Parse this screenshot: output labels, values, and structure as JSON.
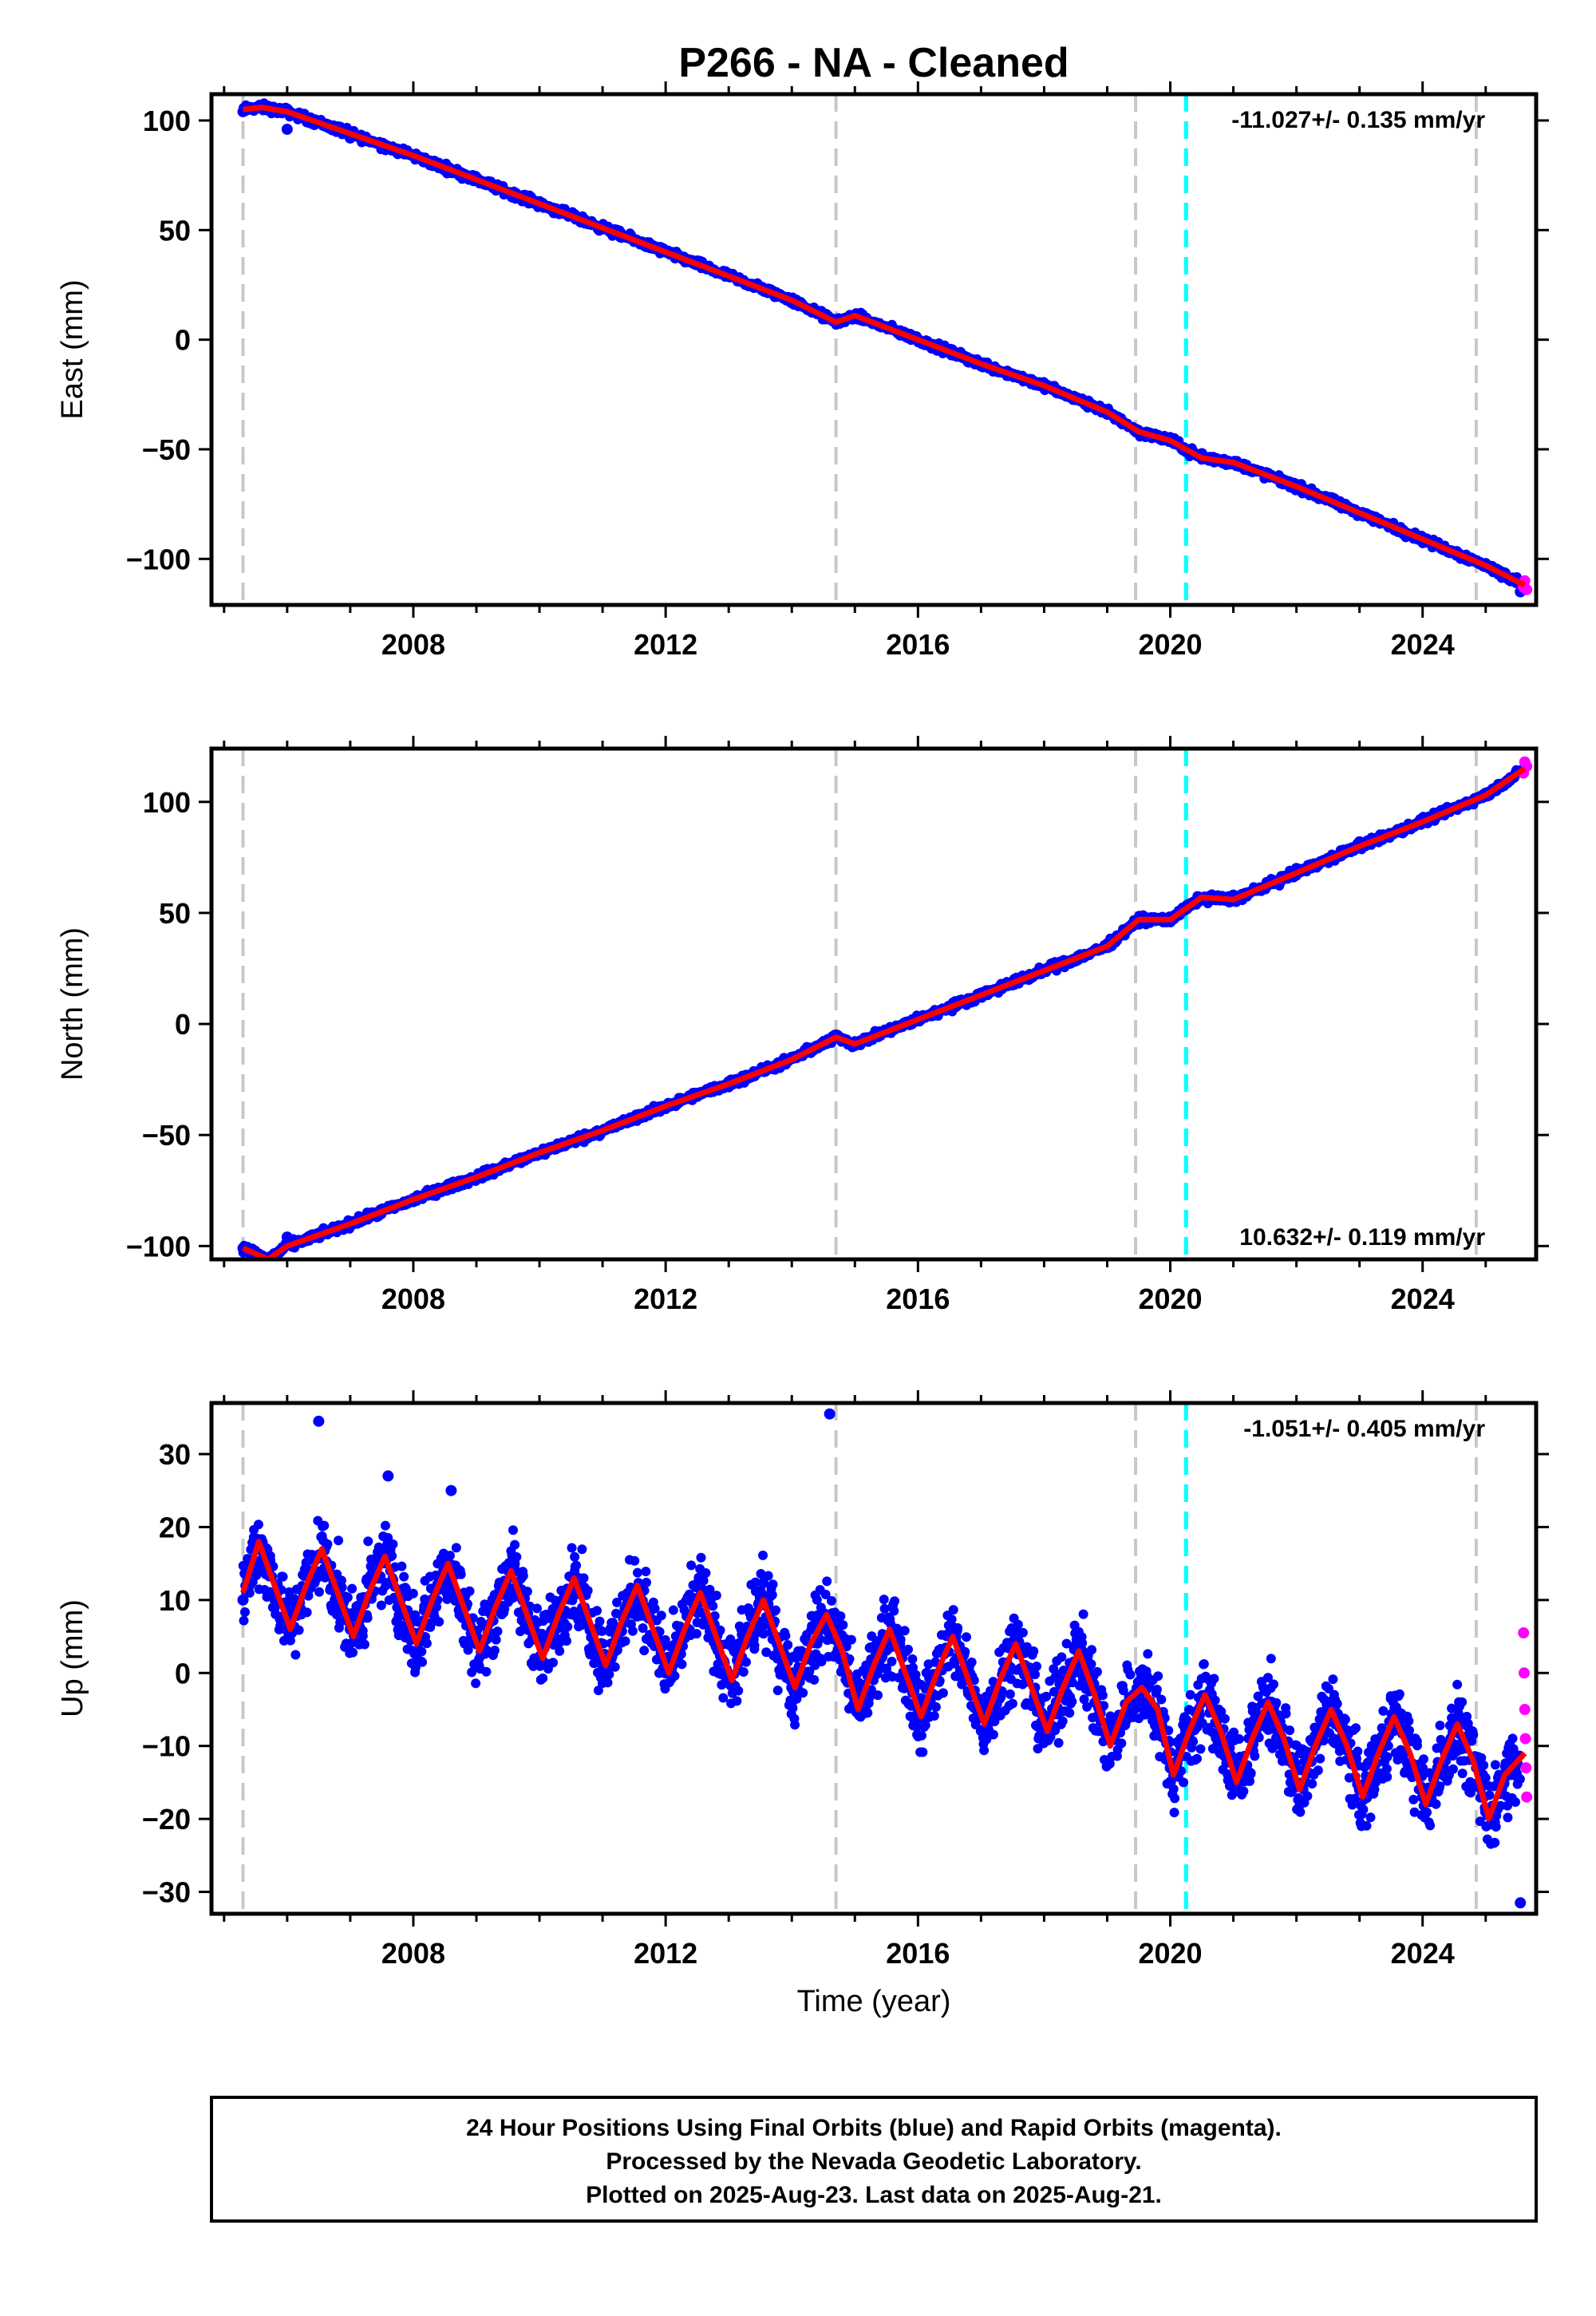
{
  "title": "P266  - NA - Cleaned",
  "xlabel": "Time (year)",
  "footer": [
    "24 Hour Positions Using Final Orbits (blue) and Rapid Orbits (magenta).",
    "Processed by the Nevada Geodetic Laboratory.",
    "Plotted on 2025-Aug-23. Last data on 2025-Aug-21."
  ],
  "colors": {
    "final_orbits": "#0000ff",
    "rapid_orbits": "#ff00ff",
    "model_fit": "#ff0000",
    "event_line": "#00ffff",
    "equipment_line": "#c8c8c8"
  },
  "chart_data": [
    {
      "type": "scatter",
      "ylabel": "East (mm)",
      "xlim": [
        2004.8,
        2025.8
      ],
      "ylim": [
        -121,
        112
      ],
      "xticks": [
        2008,
        2012,
        2016,
        2020,
        2024
      ],
      "yticks": [
        100,
        50,
        0,
        -50,
        -100
      ],
      "ytick_labels": [
        "100",
        "50",
        "0",
        "−50",
        "−100"
      ],
      "rate_label": "-11.027+/- 0.135 mm/yr",
      "rate_position": "top-right",
      "equipment_lines": [
        2005.3,
        2014.7,
        2019.45,
        2024.85
      ],
      "event_lines": [
        2020.25
      ],
      "series": [
        {
          "style": "final_orbits",
          "x": [
            2005.3,
            2006.0,
            2007.0,
            2008.0,
            2009.0,
            2010.0,
            2011.0,
            2012.0,
            2013.0,
            2014.0,
            2014.7,
            2015.0,
            2016.0,
            2017.0,
            2018.0,
            2019.0,
            2019.5,
            2020.0,
            2020.5,
            2021.0,
            2022.0,
            2023.0,
            2024.0,
            2025.0,
            2025.55
          ],
          "y": [
            104,
            96,
            92,
            84,
            74,
            63,
            52,
            40,
            30,
            18,
            8,
            10,
            0,
            -12,
            -22,
            -34,
            -42,
            -45,
            -52,
            -56,
            -67,
            -80,
            -92,
            -103,
            -115
          ]
        },
        {
          "style": "rapid_orbits",
          "x": [
            2025.6,
            2025.62,
            2025.65
          ],
          "y": [
            -113,
            -110,
            -114
          ]
        },
        {
          "style": "model_fit",
          "x": [
            2005.3,
            2005.6,
            2006.0,
            2007.0,
            2008.0,
            2009.0,
            2010.0,
            2011.0,
            2012.0,
            2013.0,
            2014.0,
            2014.7,
            2015.0,
            2016.0,
            2017.0,
            2018.0,
            2019.0,
            2019.5,
            2020.0,
            2020.5,
            2021.0,
            2022.0,
            2023.0,
            2024.0,
            2025.0,
            2025.62
          ],
          "y": [
            105,
            106,
            104,
            94,
            84,
            73,
            62,
            51,
            40,
            29,
            18,
            8,
            11,
            0,
            -11,
            -21,
            -33,
            -42,
            -46,
            -54,
            -56,
            -67,
            -79,
            -91,
            -103,
            -112
          ]
        }
      ]
    },
    {
      "type": "scatter",
      "ylabel": "North (mm)",
      "xlim": [
        2004.8,
        2025.8
      ],
      "ylim": [
        -106,
        124
      ],
      "xticks": [
        2008,
        2012,
        2016,
        2020,
        2024
      ],
      "yticks": [
        100,
        50,
        0,
        -50,
        -100
      ],
      "ytick_labels": [
        "100",
        "50",
        "0",
        "−50",
        "−100"
      ],
      "rate_label": "10.632+/- 0.119 mm/yr",
      "rate_position": "bottom-right",
      "equipment_lines": [
        2005.3,
        2014.7,
        2019.45,
        2024.85
      ],
      "event_lines": [
        2020.25
      ],
      "series": [
        {
          "style": "final_orbits",
          "x": [
            2005.3,
            2006.0,
            2007.0,
            2008.0,
            2009.0,
            2010.0,
            2011.0,
            2012.0,
            2013.0,
            2014.0,
            2014.7,
            2015.0,
            2016.0,
            2017.0,
            2018.0,
            2019.0,
            2019.5,
            2020.0,
            2020.5,
            2021.0,
            2022.0,
            2023.0,
            2024.0,
            2025.0,
            2025.55
          ],
          "y": [
            -101,
            -96,
            -89,
            -80,
            -69,
            -58,
            -48,
            -38,
            -26,
            -15,
            -5,
            -8,
            3,
            13,
            24,
            35,
            47,
            46,
            56,
            58,
            70,
            82,
            92,
            103,
            114
          ]
        },
        {
          "style": "rapid_orbits",
          "x": [
            2025.6,
            2025.62,
            2025.65
          ],
          "y": [
            113,
            118,
            116
          ]
        },
        {
          "style": "model_fit",
          "x": [
            2005.3,
            2005.7,
            2006.0,
            2007.0,
            2008.0,
            2009.0,
            2010.0,
            2011.0,
            2012.0,
            2013.0,
            2014.0,
            2014.7,
            2015.0,
            2016.0,
            2017.0,
            2018.0,
            2019.0,
            2019.5,
            2020.0,
            2020.5,
            2021.0,
            2022.0,
            2023.0,
            2024.0,
            2025.0,
            2025.62
          ],
          "y": [
            -101,
            -106,
            -100,
            -90,
            -79,
            -69,
            -58,
            -48,
            -37,
            -27,
            -16,
            -6,
            -9,
            2,
            13,
            24,
            35,
            47,
            47,
            57,
            56,
            68,
            80,
            91,
            103,
            115
          ]
        }
      ]
    },
    {
      "type": "scatter",
      "ylabel": "Up (mm)",
      "xlim": [
        2004.8,
        2025.8
      ],
      "ylim": [
        -33,
        37
      ],
      "xticks": [
        2008,
        2012,
        2016,
        2020,
        2024
      ],
      "yticks": [
        30,
        20,
        10,
        0,
        -10,
        -20,
        -30
      ],
      "ytick_labels": [
        "30",
        "20",
        "10",
        "0",
        "−10",
        "−20",
        "−30"
      ],
      "rate_label": "-1.051+/- 0.405 mm/yr",
      "rate_position": "top-right",
      "equipment_lines": [
        2005.3,
        2014.7,
        2019.45,
        2024.85
      ],
      "event_lines": [
        2020.25
      ],
      "series": [
        {
          "style": "final_orbits",
          "x": [
            2005.3,
            2006.0,
            2006.5,
            2007.0,
            2007.6,
            2008.0,
            2008.6,
            2009.0,
            2009.6,
            2010.0,
            2010.6,
            2011.0,
            2011.6,
            2012.0,
            2012.6,
            2013.0,
            2013.6,
            2014.0,
            2014.6,
            2015.0,
            2015.6,
            2016.0,
            2016.6,
            2017.0,
            2017.6,
            2018.0,
            2018.6,
            2019.0,
            2019.6,
            2020.0,
            2020.6,
            2021.0,
            2021.6,
            2022.0,
            2022.6,
            2023.0,
            2023.6,
            2024.0,
            2024.6,
            2025.0,
            2025.55
          ],
          "y": [
            10,
            6,
            34.5,
            6,
            27,
            5,
            25,
            4,
            15,
            2,
            13,
            1,
            12,
            0,
            11,
            -1,
            10,
            -2,
            35.5,
            -4,
            6,
            -5,
            5,
            -6,
            4,
            -7,
            3,
            -8,
            -5,
            -13,
            -3,
            -14,
            -4,
            -15,
            -5,
            -16,
            -6,
            -17,
            -7,
            -19,
            -31.5
          ]
        },
        {
          "style": "rapid_orbits",
          "x": [
            2025.6,
            2025.61,
            2025.62,
            2025.63,
            2025.64,
            2025.65
          ],
          "y": [
            5.5,
            0,
            -5,
            -9,
            -13,
            -17
          ]
        },
        {
          "style": "model_fit",
          "x": [
            2005.3,
            2005.55,
            2005.8,
            2006.05,
            2006.3,
            2006.55,
            2006.8,
            2007.05,
            2007.3,
            2007.55,
            2007.8,
            2008.05,
            2008.3,
            2008.55,
            2008.8,
            2009.05,
            2009.3,
            2009.55,
            2009.8,
            2010.05,
            2010.3,
            2010.55,
            2010.8,
            2011.05,
            2011.3,
            2011.55,
            2011.8,
            2012.05,
            2012.3,
            2012.55,
            2012.8,
            2013.05,
            2013.3,
            2013.55,
            2013.8,
            2014.05,
            2014.3,
            2014.55,
            2014.8,
            2015.05,
            2015.3,
            2015.55,
            2015.8,
            2016.05,
            2016.3,
            2016.55,
            2016.8,
            2017.05,
            2017.3,
            2017.55,
            2017.8,
            2018.05,
            2018.3,
            2018.55,
            2018.8,
            2019.05,
            2019.3,
            2019.55,
            2019.8,
            2020.05,
            2020.3,
            2020.55,
            2020.8,
            2021.05,
            2021.3,
            2021.55,
            2021.8,
            2022.05,
            2022.3,
            2022.55,
            2022.8,
            2023.05,
            2023.3,
            2023.55,
            2023.8,
            2024.05,
            2024.3,
            2024.55,
            2024.8,
            2025.05,
            2025.3,
            2025.62
          ],
          "y": [
            11,
            18,
            12,
            6,
            12,
            17,
            11,
            5,
            11,
            16,
            10,
            4,
            10,
            15,
            9,
            3,
            9,
            14,
            8,
            2,
            8,
            13,
            7,
            1,
            7,
            12,
            6,
            0,
            6,
            11,
            5,
            -1,
            5,
            10,
            4,
            -2,
            4,
            8,
            3,
            -5,
            1,
            6,
            0,
            -6,
            0,
            5,
            -1,
            -7,
            -1,
            4,
            -2,
            -8,
            -2,
            3,
            -3,
            -10,
            -4,
            -2,
            -5,
            -14,
            -8,
            -3,
            -8,
            -15,
            -9,
            -4,
            -9,
            -16,
            -10,
            -5,
            -10,
            -17,
            -11,
            -6,
            -11,
            -18,
            -12,
            -7,
            -12,
            -20,
            -14,
            -11
          ]
        }
      ]
    }
  ]
}
